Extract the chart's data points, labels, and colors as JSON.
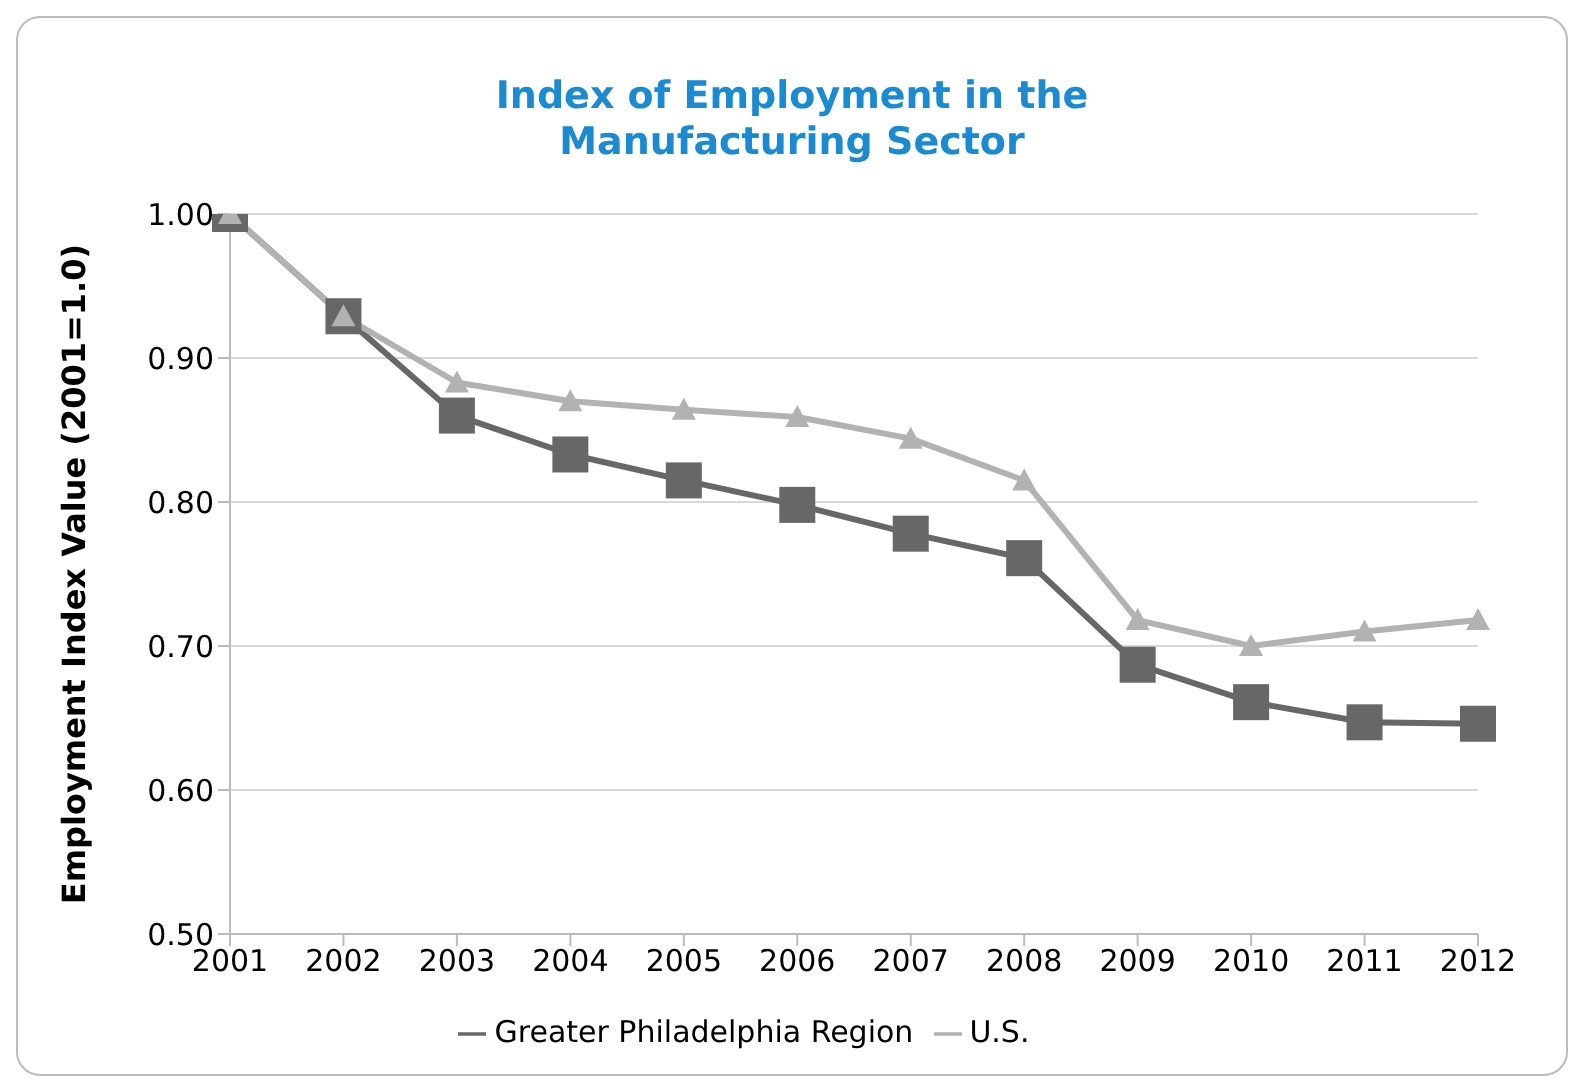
{
  "chart_data": {
    "type": "line",
    "title": "Index of Employment in the\nManufacturing Sector",
    "ylabel": "Employment Index Value (2001=1.0)",
    "categories": [
      "2001",
      "2002",
      "2003",
      "2004",
      "2005",
      "2006",
      "2007",
      "2008",
      "2009",
      "2010",
      "2011",
      "2012"
    ],
    "series": [
      {
        "name": "Greater Philadelphia Region",
        "color": "#676767",
        "marker": "square",
        "values": [
          1.0,
          0.929,
          0.86,
          0.833,
          0.815,
          0.798,
          0.778,
          0.761,
          0.687,
          0.661,
          0.647,
          0.646
        ]
      },
      {
        "name": "U.S.",
        "color": "#b2b2b2",
        "marker": "triangle",
        "values": [
          1.0,
          0.929,
          0.883,
          0.87,
          0.864,
          0.859,
          0.844,
          0.815,
          0.718,
          0.7,
          0.71,
          0.718
        ]
      }
    ],
    "ylim": [
      0.5,
      1.0
    ],
    "yticks": [
      {
        "value": 0.5,
        "label": "0.50"
      },
      {
        "value": 0.6,
        "label": "0.60"
      },
      {
        "value": 0.7,
        "label": "0.70"
      },
      {
        "value": 0.8,
        "label": "0.80"
      },
      {
        "value": 0.9,
        "label": "0.90"
      },
      {
        "value": 1.0,
        "label": "1.00"
      }
    ],
    "grid": "y",
    "legend": "bottom"
  }
}
